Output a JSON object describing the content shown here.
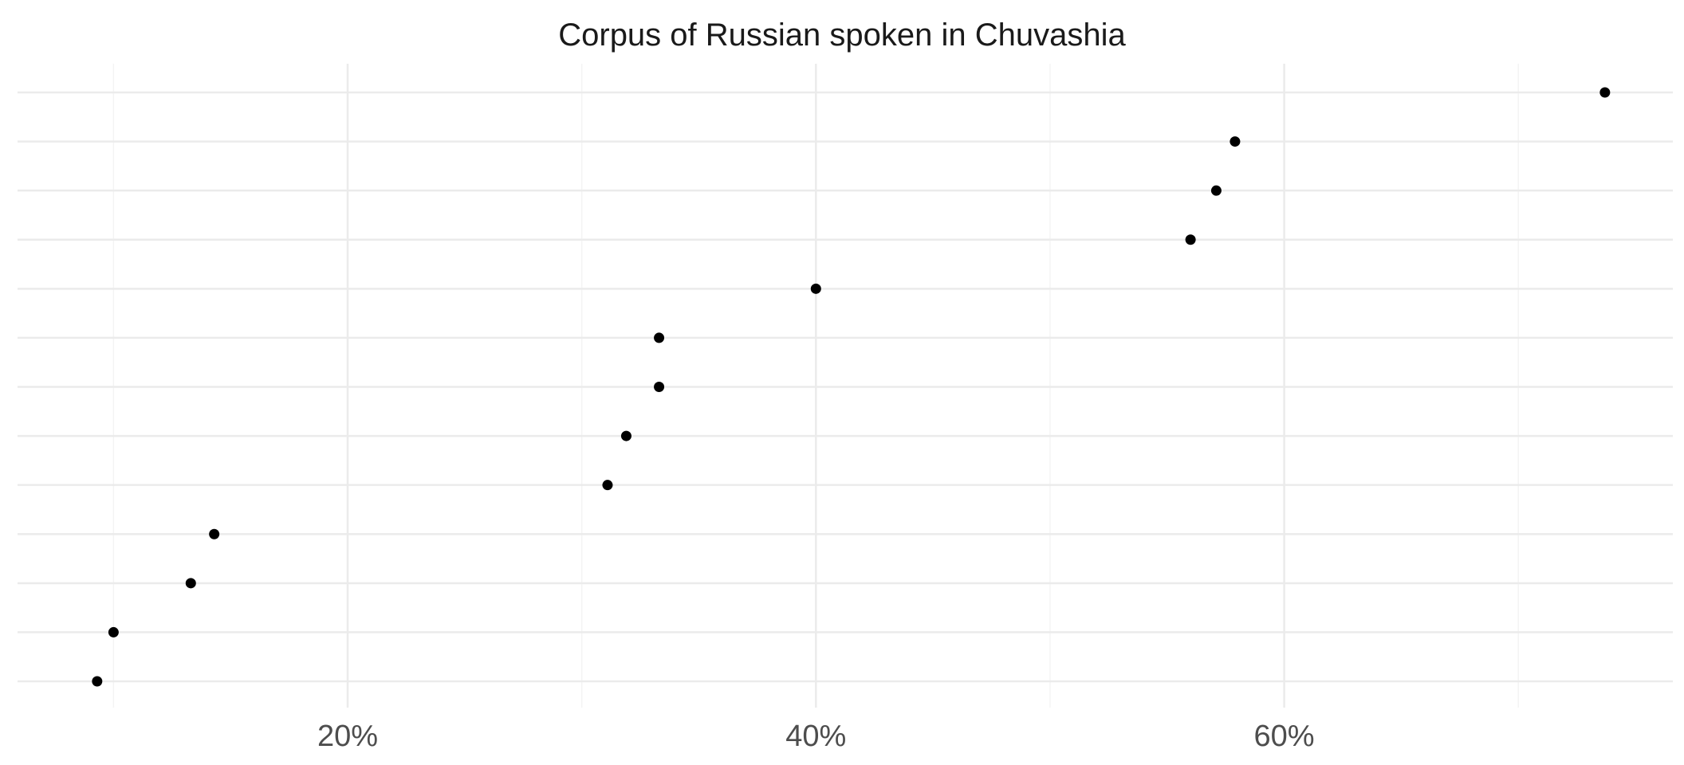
{
  "chart_data": {
    "type": "scatter",
    "title": "Corpus of Russian spoken in Chuvashia",
    "xlabel": "",
    "ylabel": "",
    "xlim": [
      5.9,
      76.6
    ],
    "x_tick_values": [
      20,
      40,
      60
    ],
    "x_tick_labels": [
      "20%",
      "40%",
      "60%"
    ],
    "x_minor_grid": [
      10,
      30,
      50,
      70
    ],
    "y_categories": 13,
    "y_tick_labels": [],
    "points": [
      {
        "row": 1,
        "x": 9.3
      },
      {
        "row": 2,
        "x": 10.0
      },
      {
        "row": 3,
        "x": 13.3
      },
      {
        "row": 4,
        "x": 14.3
      },
      {
        "row": 5,
        "x": 31.1
      },
      {
        "row": 6,
        "x": 31.9
      },
      {
        "row": 7,
        "x": 33.3
      },
      {
        "row": 8,
        "x": 33.3
      },
      {
        "row": 9,
        "x": 40.0
      },
      {
        "row": 10,
        "x": 56.0
      },
      {
        "row": 11,
        "x": 57.1
      },
      {
        "row": 12,
        "x": 57.9
      },
      {
        "row": 13,
        "x": 73.7
      }
    ],
    "grid": true,
    "legend": "none",
    "colors": {
      "background": "#ffffff",
      "grid_major": "#ebebeb",
      "grid_minor": "#f4f4f4",
      "point": "#000000",
      "tick_text": "#4d4d4d"
    }
  }
}
